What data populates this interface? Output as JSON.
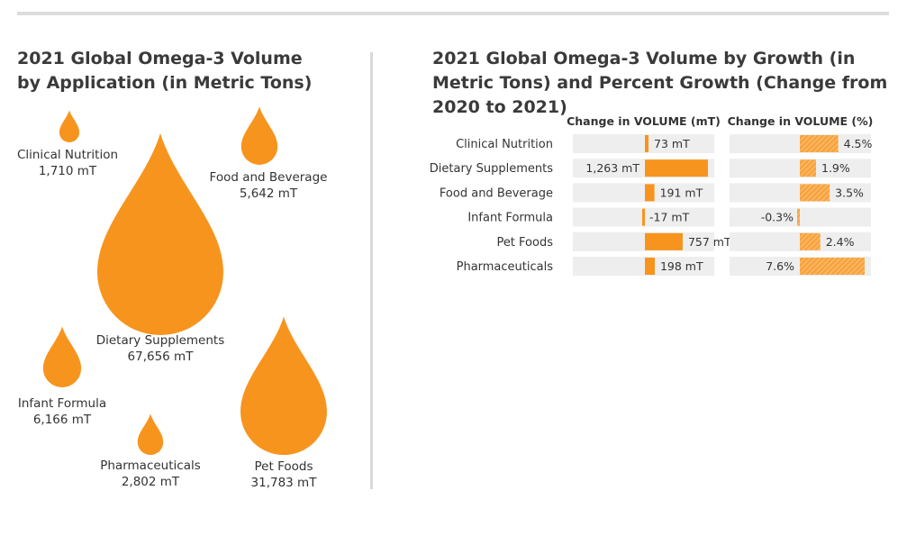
{
  "colors": {
    "accent": "#f7941d",
    "track": "#eeeeee",
    "hatch": "#f9b35e"
  },
  "chart_data": [
    {
      "type": "bubble",
      "title": "2021 Global Omega-3 Volume by Application (in Metric Tons)",
      "unit": "mT",
      "items": [
        {
          "name": "Clinical Nutrition",
          "value": 1710,
          "label": "1,710 mT"
        },
        {
          "name": "Food and Beverage",
          "value": 5642,
          "label": "5,642 mT"
        },
        {
          "name": "Dietary Supplements",
          "value": 67656,
          "label": "67,656 mT"
        },
        {
          "name": "Infant Formula",
          "value": 6166,
          "label": "6,166 mT"
        },
        {
          "name": "Pharmaceuticals",
          "value": 2802,
          "label": "2,802 mT"
        },
        {
          "name": "Pet Foods",
          "value": 31783,
          "label": "31,783 mT"
        }
      ]
    },
    {
      "type": "bar",
      "title": "2021 Global Omega-3 Volume by Growth (in Metric Tons) and Percent Growth (Change from 2020 to 2021)",
      "categories": [
        "Clinical Nutrition",
        "Dietary Supplements",
        "Food and Beverage",
        "Infant Formula",
        "Pet Foods",
        "Pharmaceuticals"
      ],
      "series": [
        {
          "name": "Change in VOLUME (mT)",
          "values": [
            73,
            1263,
            191,
            -17,
            757,
            198
          ],
          "labels": [
            "73 mT",
            "1,263 mT",
            "191 mT",
            "-17 mT",
            "757 mT",
            "198 mT"
          ]
        },
        {
          "name": "Change in VOLUME (%)",
          "values": [
            4.5,
            1.9,
            3.5,
            -0.3,
            2.4,
            7.6
          ],
          "labels": [
            "4.5%",
            "1.9%",
            "3.5%",
            "-0.3%",
            "2.4%",
            "7.6%"
          ]
        }
      ]
    }
  ]
}
